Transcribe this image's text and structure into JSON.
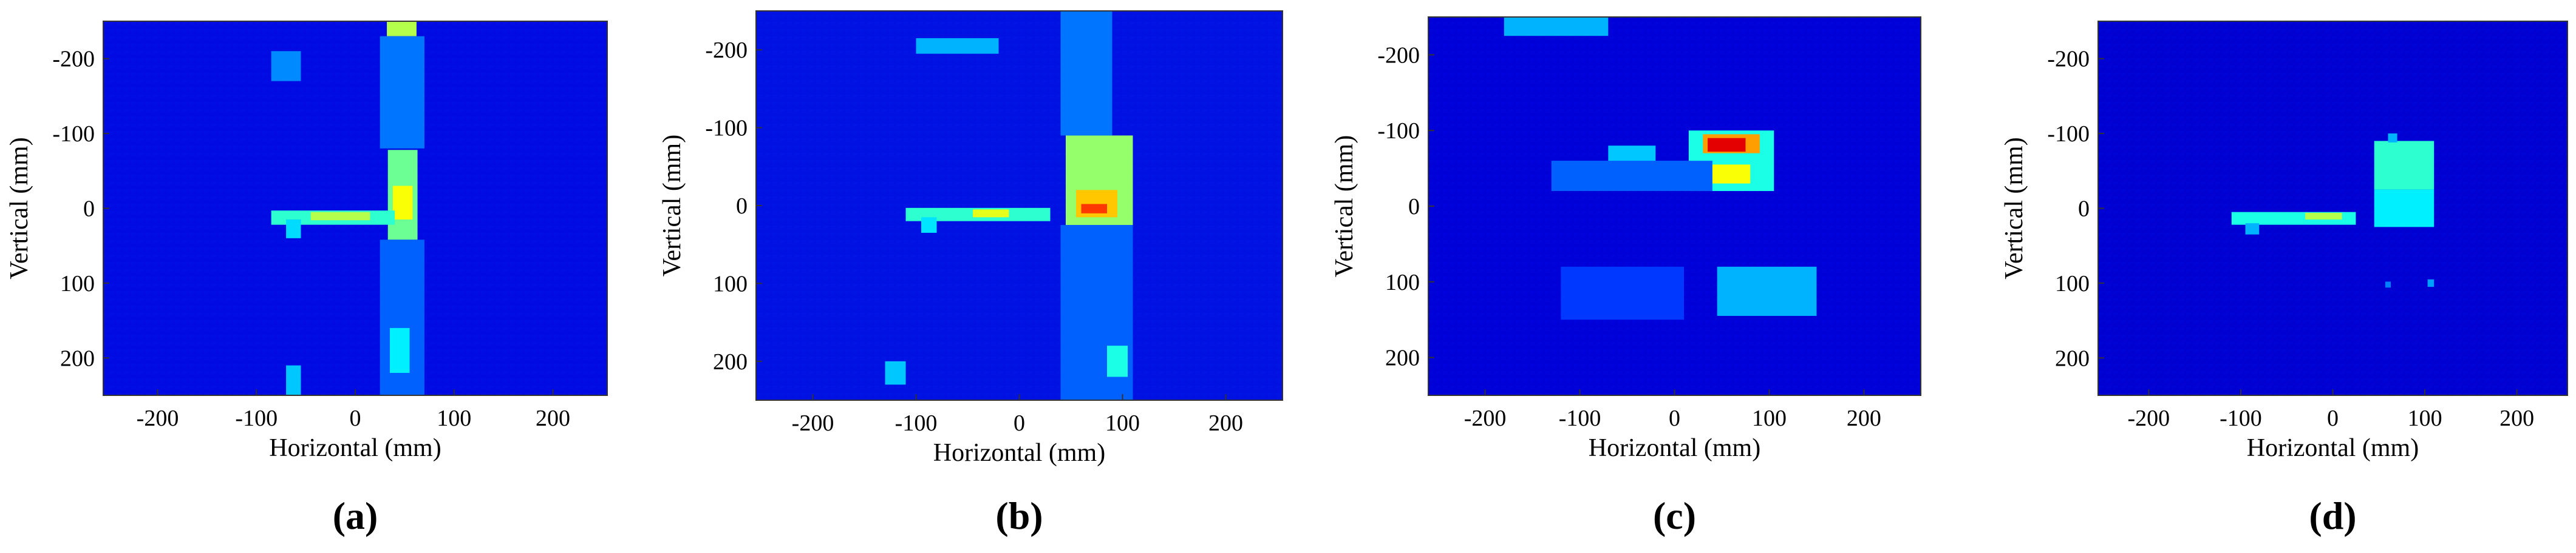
{
  "chart_data": [
    {
      "type": "heatmap",
      "panel_label": "(a)",
      "xlabel": "Horizontal (mm)",
      "ylabel": "Vertical (mm)",
      "xlim": [
        -255,
        255
      ],
      "ylim": [
        -250,
        250
      ],
      "x_ticks": [
        -200,
        -100,
        0,
        100,
        200
      ],
      "y_ticks": [
        -200,
        -100,
        0,
        100,
        200
      ],
      "y_inverted": true,
      "colormap": "jet",
      "background_level": 0.14,
      "features": [
        {
          "kind": "box",
          "x": [
            33,
            63
          ],
          "y": [
            -78,
            42
          ],
          "level": 0.48
        },
        {
          "kind": "box",
          "x": [
            38,
            58
          ],
          "y": [
            -30,
            15
          ],
          "level": 0.62
        },
        {
          "kind": "box",
          "x": [
            -85,
            40
          ],
          "y": [
            3,
            22
          ],
          "level": 0.42
        },
        {
          "kind": "box",
          "x": [
            -45,
            15
          ],
          "y": [
            5,
            16
          ],
          "level": 0.55
        },
        {
          "kind": "box",
          "x": [
            -70,
            -55
          ],
          "y": [
            15,
            40
          ],
          "level": 0.34
        },
        {
          "kind": "box",
          "x": [
            32,
            62
          ],
          "y": [
            -250,
            -230
          ],
          "level": 0.55
        },
        {
          "kind": "box",
          "x": [
            25,
            70
          ],
          "y": [
            -230,
            -80
          ],
          "level": 0.24
        },
        {
          "kind": "box",
          "x": [
            25,
            70
          ],
          "y": [
            42,
            250
          ],
          "level": 0.22
        },
        {
          "kind": "box",
          "x": [
            35,
            55
          ],
          "y": [
            160,
            220
          ],
          "level": 0.36
        },
        {
          "kind": "box",
          "x": [
            -85,
            -55
          ],
          "y": [
            -210,
            -170
          ],
          "level": 0.26
        },
        {
          "kind": "box",
          "x": [
            -70,
            -55
          ],
          "y": [
            210,
            250
          ],
          "level": 0.32
        }
      ]
    },
    {
      "type": "heatmap",
      "panel_label": "(b)",
      "xlabel": "Horizontal (mm)",
      "ylabel": "Vertical (mm)",
      "xlim": [
        -255,
        255
      ],
      "ylim": [
        -250,
        250
      ],
      "x_ticks": [
        -200,
        -100,
        0,
        100,
        200
      ],
      "y_ticks": [
        -200,
        -100,
        0,
        100,
        200
      ],
      "y_inverted": true,
      "colormap": "jet",
      "background_level": 0.15,
      "features": [
        {
          "kind": "box",
          "x": [
            45,
            110
          ],
          "y": [
            -90,
            25
          ],
          "level": 0.52
        },
        {
          "kind": "box",
          "x": [
            55,
            95
          ],
          "y": [
            -20,
            15
          ],
          "level": 0.68
        },
        {
          "kind": "box",
          "x": [
            60,
            85
          ],
          "y": [
            -2,
            10
          ],
          "level": 0.82
        },
        {
          "kind": "box",
          "x": [
            -110,
            30
          ],
          "y": [
            3,
            20
          ],
          "level": 0.42
        },
        {
          "kind": "box",
          "x": [
            -45,
            -10
          ],
          "y": [
            5,
            15
          ],
          "level": 0.6
        },
        {
          "kind": "box",
          "x": [
            -95,
            -80
          ],
          "y": [
            15,
            35
          ],
          "level": 0.35
        },
        {
          "kind": "box",
          "x": [
            -100,
            -20
          ],
          "y": [
            -215,
            -195
          ],
          "level": 0.3
        },
        {
          "kind": "box",
          "x": [
            40,
            90
          ],
          "y": [
            -250,
            -90
          ],
          "level": 0.24
        },
        {
          "kind": "box",
          "x": [
            40,
            110
          ],
          "y": [
            25,
            250
          ],
          "level": 0.22
        },
        {
          "kind": "box",
          "x": [
            85,
            105
          ],
          "y": [
            180,
            220
          ],
          "level": 0.4
        },
        {
          "kind": "box",
          "x": [
            -130,
            -110
          ],
          "y": [
            200,
            230
          ],
          "level": 0.32
        }
      ]
    },
    {
      "type": "heatmap",
      "panel_label": "(c)",
      "xlabel": "Horizontal (mm)",
      "ylabel": "Vertical (mm)",
      "xlim": [
        -260,
        260
      ],
      "ylim": [
        -250,
        250
      ],
      "x_ticks": [
        -200,
        -100,
        0,
        100,
        200
      ],
      "y_ticks": [
        -200,
        -100,
        0,
        100,
        200
      ],
      "y_inverted": true,
      "colormap": "jet",
      "background_level": 0.11,
      "features": [
        {
          "kind": "box",
          "x": [
            15,
            105
          ],
          "y": [
            -100,
            -20
          ],
          "level": 0.4
        },
        {
          "kind": "box",
          "x": [
            30,
            90
          ],
          "y": [
            -95,
            -70
          ],
          "level": 0.72
        },
        {
          "kind": "box",
          "x": [
            35,
            75
          ],
          "y": [
            -90,
            -72
          ],
          "level": 0.9
        },
        {
          "kind": "box",
          "x": [
            35,
            80
          ],
          "y": [
            -55,
            -30
          ],
          "level": 0.62
        },
        {
          "kind": "box",
          "x": [
            -70,
            -20
          ],
          "y": [
            -80,
            -25
          ],
          "level": 0.32
        },
        {
          "kind": "box",
          "x": [
            -180,
            -70
          ],
          "y": [
            -250,
            -225
          ],
          "level": 0.3
        },
        {
          "kind": "box",
          "x": [
            -130,
            40
          ],
          "y": [
            -60,
            -20
          ],
          "level": 0.22
        },
        {
          "kind": "box",
          "x": [
            45,
            150
          ],
          "y": [
            80,
            145
          ],
          "level": 0.3
        },
        {
          "kind": "box",
          "x": [
            -120,
            10
          ],
          "y": [
            80,
            150
          ],
          "level": 0.18
        }
      ]
    },
    {
      "type": "heatmap",
      "panel_label": "(d)",
      "xlabel": "Horizontal (mm)",
      "ylabel": "Vertical (mm)",
      "xlim": [
        -255,
        255
      ],
      "ylim": [
        -250,
        250
      ],
      "x_ticks": [
        -200,
        -100,
        0,
        100,
        200
      ],
      "y_ticks": [
        -200,
        -100,
        0,
        100,
        200
      ],
      "y_inverted": true,
      "colormap": "jet",
      "background_level": 0.1,
      "features": [
        {
          "kind": "box",
          "x": [
            45,
            110
          ],
          "y": [
            -90,
            -25
          ],
          "level": 0.42
        },
        {
          "kind": "box",
          "x": [
            45,
            110
          ],
          "y": [
            -25,
            25
          ],
          "level": 0.36
        },
        {
          "kind": "box",
          "x": [
            -110,
            25
          ],
          "y": [
            5,
            22
          ],
          "level": 0.4
        },
        {
          "kind": "box",
          "x": [
            -30,
            10
          ],
          "y": [
            6,
            15
          ],
          "level": 0.55
        },
        {
          "kind": "box",
          "x": [
            -95,
            -80
          ],
          "y": [
            20,
            35
          ],
          "level": 0.3
        },
        {
          "kind": "box",
          "x": [
            60,
            70
          ],
          "y": [
            -100,
            -88
          ],
          "level": 0.3
        },
        {
          "kind": "box",
          "x": [
            103,
            110
          ],
          "y": [
            95,
            105
          ],
          "level": 0.28
        },
        {
          "kind": "box",
          "x": [
            57,
            63
          ],
          "y": [
            98,
            106
          ],
          "level": 0.25
        }
      ]
    }
  ]
}
